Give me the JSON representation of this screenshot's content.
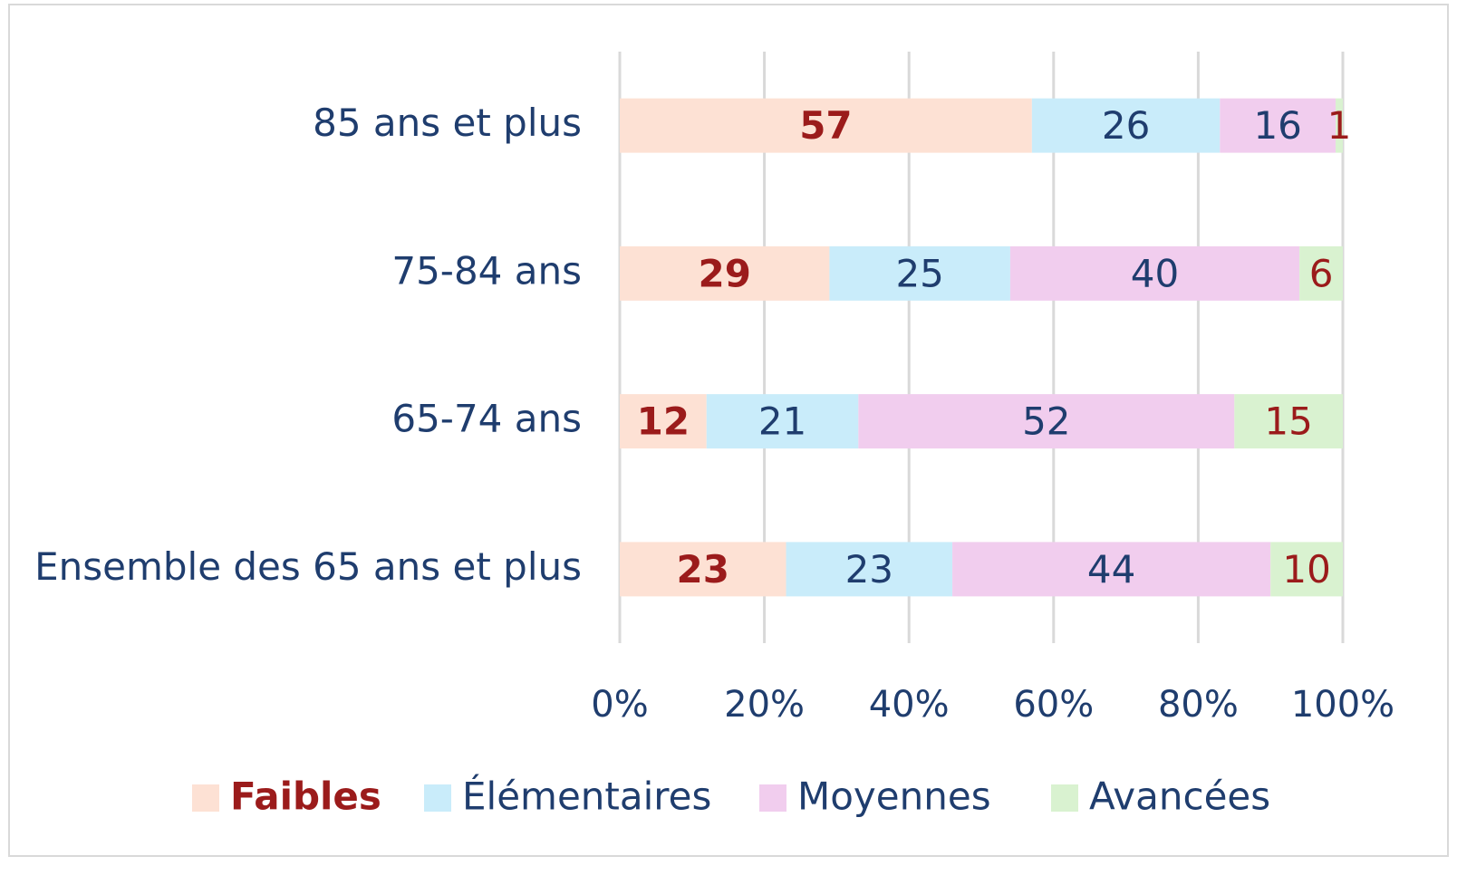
{
  "chart_data": {
    "type": "stacked-bar-horizontal",
    "categories": [
      "85 ans et plus",
      "75-84 ans",
      "65-74 ans",
      "Ensemble des 65 ans et plus"
    ],
    "series": [
      {
        "name": "Faibles",
        "color": "#fde1d4",
        "label_color": "#9b1b1b",
        "bold": true,
        "values": [
          57,
          29,
          12,
          23
        ]
      },
      {
        "name": "Élémentaires",
        "color": "#c9ecfa",
        "label_color": "#1f3d6e",
        "bold": false,
        "values": [
          26,
          25,
          21,
          23
        ]
      },
      {
        "name": "Moyennes",
        "color": "#f1cdee",
        "label_color": "#1f3d6e",
        "bold": false,
        "values": [
          16,
          40,
          52,
          44
        ]
      },
      {
        "name": "Avancées",
        "color": "#d9f2d0",
        "label_color": "#9b1b1b",
        "bold": false,
        "values": [
          1,
          6,
          15,
          10
        ]
      }
    ],
    "xlim": [
      0,
      100
    ],
    "xticks": [
      {
        "value": 0,
        "label": "0%"
      },
      {
        "value": 20,
        "label": "20%"
      },
      {
        "value": 40,
        "label": "40%"
      },
      {
        "value": 60,
        "label": "60%"
      },
      {
        "value": 80,
        "label": "80%"
      },
      {
        "value": 100,
        "label": "100%"
      }
    ],
    "grid": true,
    "legend": "bottom"
  }
}
